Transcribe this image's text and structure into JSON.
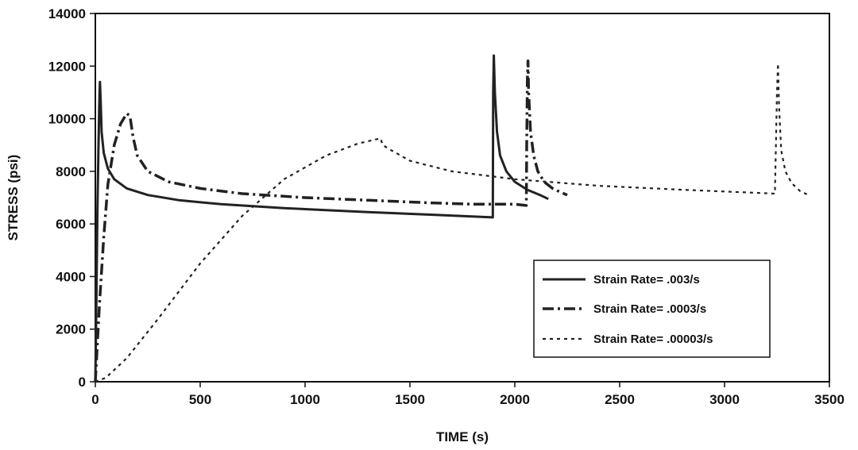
{
  "chart_data": {
    "type": "line",
    "title": "",
    "xlabel": "TIME (s)",
    "ylabel": "STRESS (psi)",
    "xlim": [
      0,
      3500
    ],
    "ylim": [
      0,
      14000
    ],
    "x_ticks": [
      0,
      500,
      1000,
      1500,
      2000,
      2500,
      3000,
      3500
    ],
    "y_ticks": [
      0,
      2000,
      4000,
      6000,
      8000,
      10000,
      12000,
      14000
    ],
    "grid": false,
    "legend_position": "lower-right",
    "series": [
      {
        "name": "Strain Rate= .003/s",
        "style": "solid",
        "color": "#222222",
        "x": [
          0,
          5,
          10,
          15,
          18,
          20,
          22,
          25,
          30,
          40,
          60,
          90,
          150,
          250,
          400,
          600,
          900,
          1300,
          1600,
          1895,
          1897,
          1900,
          1905,
          1915,
          1930,
          1960,
          2000,
          2060,
          2120,
          2160
        ],
        "y": [
          0,
          3000,
          6500,
          9000,
          10300,
          11000,
          11400,
          10800,
          9500,
          8700,
          8100,
          7700,
          7350,
          7100,
          6900,
          6750,
          6600,
          6450,
          6350,
          6250,
          11000,
          12400,
          11000,
          9500,
          8600,
          8000,
          7600,
          7300,
          7100,
          6950
        ]
      },
      {
        "name": "Strain Rate= .0003/s",
        "style": "dash-dot",
        "color": "#222222",
        "x": [
          0,
          20,
          40,
          60,
          90,
          120,
          150,
          165,
          180,
          200,
          250,
          350,
          500,
          700,
          1000,
          1300,
          1600,
          1800,
          2000,
          2055,
          2057,
          2060,
          2063,
          2066,
          2075,
          2090,
          2110,
          2140,
          2180,
          2220,
          2250
        ],
        "y": [
          0,
          3000,
          5500,
          7500,
          9000,
          9800,
          10200,
          10100,
          9300,
          8600,
          8000,
          7600,
          7350,
          7150,
          7000,
          6900,
          6800,
          6750,
          6750,
          6700,
          9000,
          11500,
          12200,
          11000,
          9500,
          8600,
          8000,
          7600,
          7350,
          7200,
          7100
        ]
      },
      {
        "name": "Strain Rate= .00003/s",
        "style": "dotted",
        "color": "#222222",
        "x": [
          0,
          50,
          150,
          300,
          500,
          700,
          900,
          1100,
          1250,
          1330,
          1360,
          1370,
          1400,
          1500,
          1700,
          2000,
          2400,
          2800,
          3100,
          3240,
          3245,
          3250,
          3255,
          3260,
          3270,
          3290,
          3320,
          3360,
          3400
        ],
        "y": [
          0,
          150,
          900,
          2400,
          4500,
          6300,
          7700,
          8600,
          9050,
          9200,
          9250,
          9000,
          8850,
          8400,
          8000,
          7700,
          7450,
          7300,
          7200,
          7150,
          9000,
          11000,
          12100,
          10500,
          8800,
          8000,
          7550,
          7250,
          7100
        ]
      }
    ]
  }
}
